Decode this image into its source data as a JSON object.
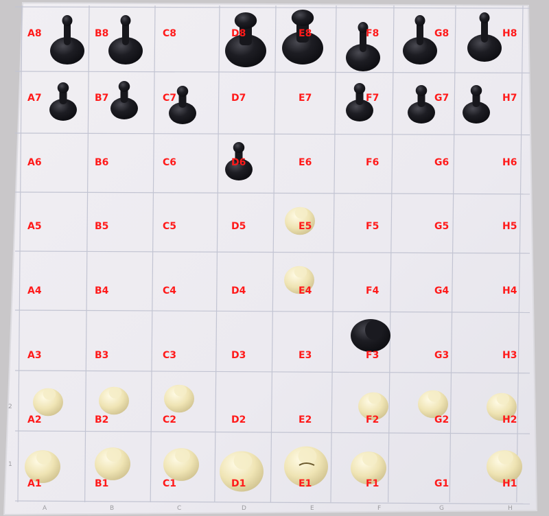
{
  "board": {
    "squares": [
      {
        "label": "A8"
      },
      {
        "label": "B8"
      },
      {
        "label": "C8"
      },
      {
        "label": "D8"
      },
      {
        "label": "E8"
      },
      {
        "label": "F8"
      },
      {
        "label": "G8"
      },
      {
        "label": "H8"
      },
      {
        "label": "A7"
      },
      {
        "label": "B7"
      },
      {
        "label": "C7"
      },
      {
        "label": "D7"
      },
      {
        "label": "E7"
      },
      {
        "label": "F7"
      },
      {
        "label": "G7"
      },
      {
        "label": "H7"
      },
      {
        "label": "A6"
      },
      {
        "label": "B6"
      },
      {
        "label": "C6"
      },
      {
        "label": "D6"
      },
      {
        "label": "E6"
      },
      {
        "label": "F6"
      },
      {
        "label": "G6"
      },
      {
        "label": "H6"
      },
      {
        "label": "A5"
      },
      {
        "label": "B5"
      },
      {
        "label": "C5"
      },
      {
        "label": "D5"
      },
      {
        "label": "E5"
      },
      {
        "label": "F5"
      },
      {
        "label": "G5"
      },
      {
        "label": "H5"
      },
      {
        "label": "A4"
      },
      {
        "label": "B4"
      },
      {
        "label": "C4"
      },
      {
        "label": "D4"
      },
      {
        "label": "E4"
      },
      {
        "label": "F4"
      },
      {
        "label": "G4"
      },
      {
        "label": "H4"
      },
      {
        "label": "A3"
      },
      {
        "label": "B3"
      },
      {
        "label": "C3"
      },
      {
        "label": "D3"
      },
      {
        "label": "E3"
      },
      {
        "label": "F3"
      },
      {
        "label": "G3"
      },
      {
        "label": "H3"
      },
      {
        "label": "A2"
      },
      {
        "label": "B2"
      },
      {
        "label": "C2"
      },
      {
        "label": "D2"
      },
      {
        "label": "E2"
      },
      {
        "label": "F2"
      },
      {
        "label": "G2"
      },
      {
        "label": "H2"
      },
      {
        "label": "A1"
      },
      {
        "label": "B1"
      },
      {
        "label": "C1"
      },
      {
        "label": "D1"
      },
      {
        "label": "E1"
      },
      {
        "label": "F1"
      },
      {
        "label": "G1"
      },
      {
        "label": "H1"
      }
    ],
    "edge_marks": [
      "A",
      "B",
      "C",
      "D",
      "E",
      "F",
      "G",
      "H",
      "1",
      "2"
    ],
    "pieces": [
      {
        "square": "A8",
        "color": "black",
        "kind": "rook"
      },
      {
        "square": "B8",
        "color": "black",
        "kind": "knight"
      },
      {
        "square": "D8",
        "color": "black",
        "kind": "queen"
      },
      {
        "square": "E8",
        "color": "black",
        "kind": "king"
      },
      {
        "square": "F8",
        "color": "black",
        "kind": "bishop"
      },
      {
        "square": "G8",
        "color": "black",
        "kind": "bishop"
      },
      {
        "square": "H8",
        "color": "black",
        "kind": "rook"
      },
      {
        "square": "A7",
        "color": "black",
        "kind": "pawn"
      },
      {
        "square": "B7",
        "color": "black",
        "kind": "pawn"
      },
      {
        "square": "C7",
        "color": "black",
        "kind": "pawn"
      },
      {
        "square": "F7",
        "color": "black",
        "kind": "pawn"
      },
      {
        "square": "G7",
        "color": "black",
        "kind": "pawn"
      },
      {
        "square": "H7",
        "color": "black",
        "kind": "pawn"
      },
      {
        "square": "D6",
        "color": "black",
        "kind": "pawn"
      },
      {
        "square": "F3",
        "color": "black",
        "kind": "knight"
      },
      {
        "square": "E5",
        "color": "white",
        "kind": "pawn"
      },
      {
        "square": "E4",
        "color": "white",
        "kind": "pawn"
      },
      {
        "square": "A2",
        "color": "white",
        "kind": "pawn"
      },
      {
        "square": "B2",
        "color": "white",
        "kind": "pawn"
      },
      {
        "square": "C2",
        "color": "white",
        "kind": "pawn"
      },
      {
        "square": "F2",
        "color": "white",
        "kind": "pawn"
      },
      {
        "square": "G2",
        "color": "white",
        "kind": "pawn"
      },
      {
        "square": "H2",
        "color": "white",
        "kind": "pawn"
      },
      {
        "square": "A1",
        "color": "white",
        "kind": "rook"
      },
      {
        "square": "B1",
        "color": "white",
        "kind": "knight"
      },
      {
        "square": "C1",
        "color": "white",
        "kind": "bishop"
      },
      {
        "square": "D1",
        "color": "white",
        "kind": "queen"
      },
      {
        "square": "E1",
        "color": "white",
        "kind": "king"
      },
      {
        "square": "F1",
        "color": "white",
        "kind": "bishop"
      },
      {
        "square": "H1",
        "color": "white",
        "kind": "rook"
      }
    ]
  },
  "colors": {
    "label": "#ff1a1a",
    "board_surface": "#eceaf0",
    "board_border": "#c9c7c9",
    "grid_line": "#c2c4d2",
    "black_piece": "#141419",
    "white_piece": "#eee3b2"
  }
}
